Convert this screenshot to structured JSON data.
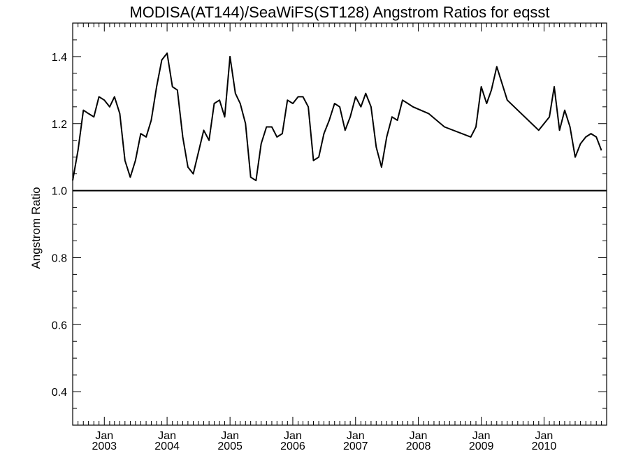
{
  "chart_data": {
    "type": "line",
    "title": "MODISA(AT144)/SeaWiFS(ST128)  Angstrom Ratios for eqsst",
    "xlabel": "",
    "ylabel": "Angstrom Ratio",
    "xlim": [
      "2002-07-01",
      "2010-12-31"
    ],
    "ylim": [
      0.3,
      1.5
    ],
    "y_ticks": [
      0.4,
      0.6,
      0.8,
      1.0,
      1.2,
      1.4
    ],
    "y_tick_labels": [
      "0.4",
      "0.6",
      "0.8",
      "1.0",
      "1.2",
      "1.4"
    ],
    "x_ticks": [
      {
        "date": "2003-01-01",
        "month": "Jan",
        "year": "2003"
      },
      {
        "date": "2004-01-01",
        "month": "Jan",
        "year": "2004"
      },
      {
        "date": "2005-01-01",
        "month": "Jan",
        "year": "2005"
      },
      {
        "date": "2006-01-01",
        "month": "Jan",
        "year": "2006"
      },
      {
        "date": "2007-01-01",
        "month": "Jan",
        "year": "2007"
      },
      {
        "date": "2008-01-01",
        "month": "Jan",
        "year": "2008"
      },
      {
        "date": "2009-01-01",
        "month": "Jan",
        "year": "2009"
      },
      {
        "date": "2010-01-01",
        "month": "Jan",
        "year": "2010"
      }
    ],
    "reference_line": {
      "y": 1.0
    },
    "grid": false,
    "series": [
      {
        "x": [
          "2002-07-01",
          "2002-08-01",
          "2002-09-01",
          "2002-10-01",
          "2002-11-01",
          "2002-12-01",
          "2003-01-01",
          "2003-02-01",
          "2003-03-01",
          "2003-04-01",
          "2003-05-01",
          "2003-06-01",
          "2003-07-01",
          "2003-08-01",
          "2003-09-01",
          "2003-10-01",
          "2003-11-01",
          "2003-12-01",
          "2004-01-01",
          "2004-02-01",
          "2004-03-01",
          "2004-04-01",
          "2004-05-01",
          "2004-06-01",
          "2004-08-01",
          "2004-09-01",
          "2004-10-01",
          "2004-11-01",
          "2004-12-01",
          "2005-01-01",
          "2005-02-01",
          "2005-03-01",
          "2005-04-01",
          "2005-05-01",
          "2005-06-01",
          "2005-07-01",
          "2005-08-01",
          "2005-09-01",
          "2005-10-01",
          "2005-11-01",
          "2005-12-01",
          "2006-01-01",
          "2006-02-01",
          "2006-03-01",
          "2006-04-01",
          "2006-05-01",
          "2006-06-01",
          "2006-07-01",
          "2006-08-01",
          "2006-09-01",
          "2006-10-01",
          "2006-11-01",
          "2006-12-01",
          "2007-01-01",
          "2007-02-01",
          "2007-03-01",
          "2007-04-01",
          "2007-05-01",
          "2007-06-01",
          "2007-07-01",
          "2007-08-01",
          "2007-09-01",
          "2007-10-01",
          "2007-11-01",
          "2007-12-01",
          "2008-03-01",
          "2008-06-01",
          "2008-11-01",
          "2008-12-01",
          "2009-01-01",
          "2009-02-01",
          "2009-03-01",
          "2009-04-01",
          "2009-06-01",
          "2009-12-01",
          "2010-02-01",
          "2010-03-01",
          "2010-04-01",
          "2010-05-01",
          "2010-06-01",
          "2010-07-01",
          "2010-08-01",
          "2010-09-01",
          "2010-10-01",
          "2010-11-01",
          "2010-12-01"
        ],
        "y": [
          1.03,
          1.12,
          1.24,
          1.23,
          1.22,
          1.28,
          1.27,
          1.25,
          1.28,
          1.23,
          1.09,
          1.04,
          1.09,
          1.17,
          1.16,
          1.21,
          1.31,
          1.39,
          1.41,
          1.31,
          1.3,
          1.16,
          1.07,
          1.05,
          1.18,
          1.15,
          1.26,
          1.27,
          1.22,
          1.4,
          1.29,
          1.26,
          1.2,
          1.04,
          1.03,
          1.14,
          1.19,
          1.19,
          1.16,
          1.17,
          1.27,
          1.26,
          1.28,
          1.28,
          1.25,
          1.09,
          1.1,
          1.17,
          1.21,
          1.26,
          1.25,
          1.18,
          1.22,
          1.28,
          1.25,
          1.29,
          1.25,
          1.13,
          1.07,
          1.16,
          1.22,
          1.21,
          1.27,
          1.26,
          1.25,
          1.23,
          1.19,
          1.16,
          1.19,
          1.31,
          1.26,
          1.3,
          1.37,
          1.27,
          1.18,
          1.22,
          1.31,
          1.18,
          1.24,
          1.19,
          1.1,
          1.14,
          1.16,
          1.17,
          1.16,
          1.12
        ]
      }
    ]
  }
}
